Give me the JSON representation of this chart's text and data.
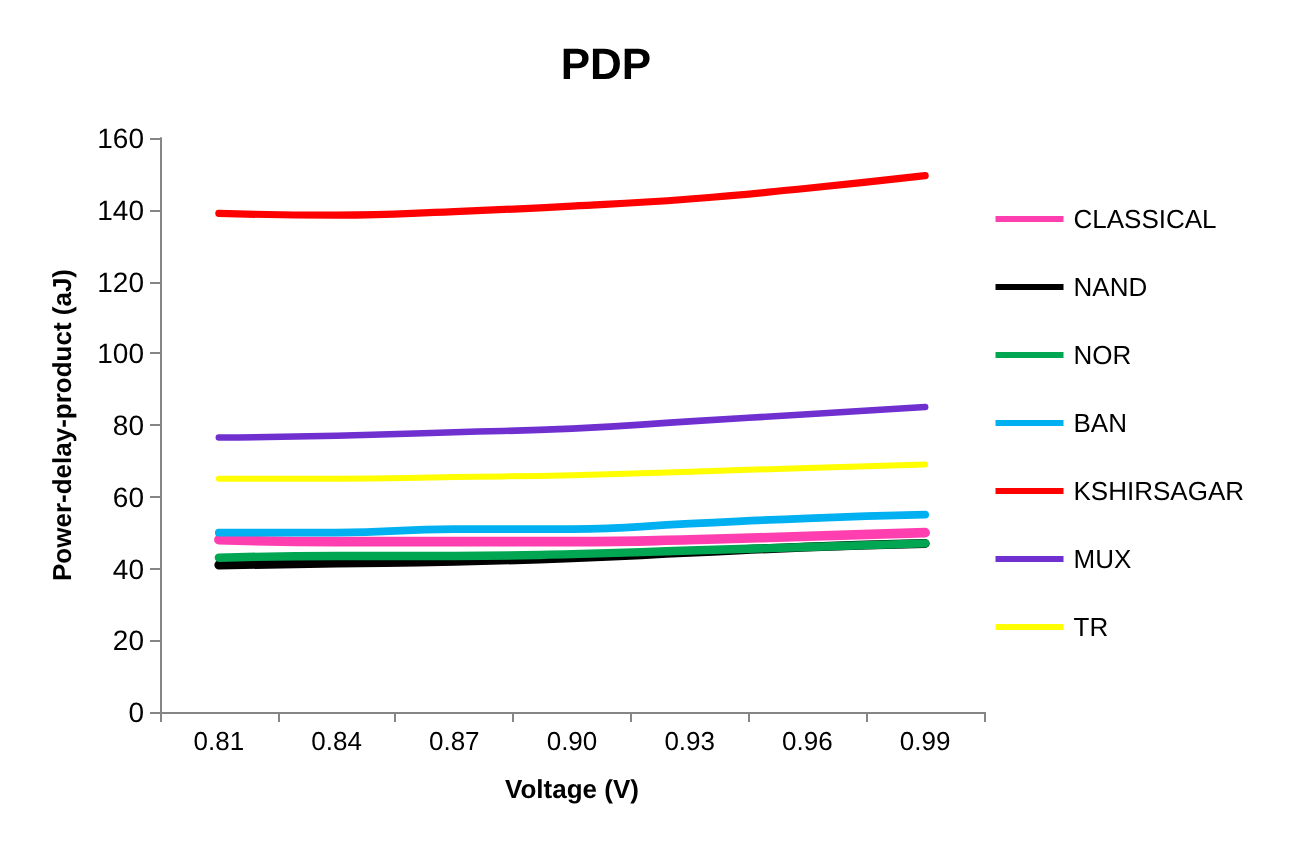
{
  "chart_data": {
    "type": "line",
    "title": "PDP",
    "xlabel": "Voltage (V)",
    "ylabel": "Power-delay-product (aJ)",
    "categories": [
      "0.81",
      "0.84",
      "0.87",
      "0.90",
      "0.93",
      "0.96",
      "0.99"
    ],
    "ylim": [
      0,
      160
    ],
    "yticks": [
      0,
      20,
      40,
      60,
      80,
      100,
      120,
      140,
      160
    ],
    "grid": false,
    "legend": "right",
    "marker": "none",
    "line_style": "solid",
    "series": [
      {
        "name": "CLASSICAL",
        "color": "#ff3fb0",
        "values": [
          48,
          47.5,
          47.5,
          47.5,
          48,
          49,
          50
        ]
      },
      {
        "name": "NAND",
        "color": "#000000",
        "values": [
          41,
          41.5,
          42,
          43,
          44.5,
          46,
          47
        ]
      },
      {
        "name": "NOR",
        "color": "#00a651",
        "values": [
          43,
          43.5,
          43.5,
          44,
          45,
          46,
          47
        ]
      },
      {
        "name": "BAN",
        "color": "#00b0f0",
        "values": [
          50,
          50,
          51,
          51,
          52.5,
          54,
          55
        ]
      },
      {
        "name": "KSHIRSAGAR",
        "color": "#ff0000",
        "values": [
          139,
          138.5,
          139.5,
          141,
          143,
          146,
          149.5
        ]
      },
      {
        "name": "MUX",
        "color": "#7030d0",
        "values": [
          76.5,
          77,
          78,
          79,
          81,
          83,
          85
        ]
      },
      {
        "name": "TR",
        "color": "#ffff00",
        "values": [
          65,
          65,
          65.5,
          66,
          67,
          68,
          69
        ]
      }
    ]
  }
}
